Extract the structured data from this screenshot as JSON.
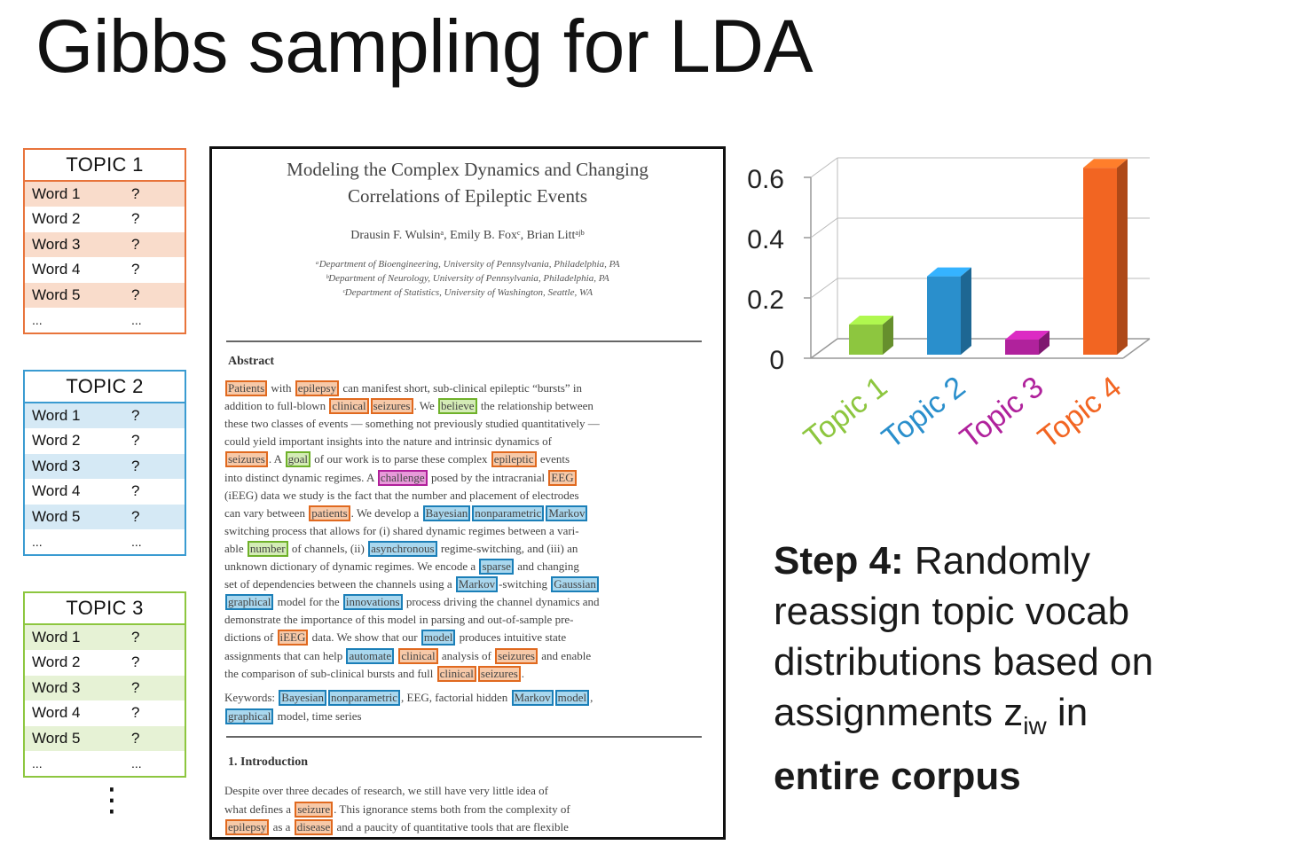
{
  "title": "Gibbs sampling for LDA",
  "topics": [
    {
      "name": "TOPIC 1",
      "color": "#e8743b",
      "fill": "#f9dccb",
      "words": [
        {
          "w": "Word 1",
          "p": "?"
        },
        {
          "w": "Word 2",
          "p": "?"
        },
        {
          "w": "Word 3",
          "p": "?"
        },
        {
          "w": "Word 4",
          "p": "?"
        },
        {
          "w": "Word 5",
          "p": "?"
        },
        {
          "w": "...",
          "p": "..."
        }
      ]
    },
    {
      "name": "TOPIC 2",
      "color": "#3a9bd1",
      "fill": "#d5e9f5",
      "words": [
        {
          "w": "Word 1",
          "p": "?"
        },
        {
          "w": "Word 2",
          "p": "?"
        },
        {
          "w": "Word 3",
          "p": "?"
        },
        {
          "w": "Word 4",
          "p": "?"
        },
        {
          "w": "Word 5",
          "p": "?"
        },
        {
          "w": "...",
          "p": "..."
        }
      ]
    },
    {
      "name": "TOPIC 3",
      "color": "#8dc63f",
      "fill": "#e6f2d5",
      "words": [
        {
          "w": "Word 1",
          "p": "?"
        },
        {
          "w": "Word 2",
          "p": "?"
        },
        {
          "w": "Word 3",
          "p": "?"
        },
        {
          "w": "Word 4",
          "p": "?"
        },
        {
          "w": "Word 5",
          "p": "?"
        },
        {
          "w": "...",
          "p": "..."
        }
      ]
    }
  ],
  "more_topics": "⋮",
  "paper": {
    "title_line1": "Modeling the Complex Dynamics and Changing",
    "title_line2": "Correlations of Epileptic Events",
    "authors": "Drausin F. Wulsinᵃ, Emily B. Foxᶜ, Brian Littᵃʲᵇ",
    "affil1": "ᵃDepartment of Bioengineering, University of Pennsylvania, Philadelphia, PA",
    "affil2": "ᵇDepartment of Neurology, University of Pennsylvania, Philadelphia, PA",
    "affil3": "ᶜDepartment of Statistics, University of Washington, Seattle, WA",
    "abstract_heading": "Abstract",
    "abstract_lines": [
      [
        {
          "t": "Patients",
          "c": "or"
        },
        {
          "t": " with "
        },
        {
          "t": "epilepsy",
          "c": "or"
        },
        {
          "t": " can manifest short, sub-clinical epileptic “bursts” in"
        }
      ],
      [
        {
          "t": "addition to full-blown "
        },
        {
          "t": "clinical",
          "c": "or"
        },
        {
          "t": "seizures",
          "c": "or"
        },
        {
          "t": ". We "
        },
        {
          "t": "believe",
          "c": "gr"
        },
        {
          "t": " the relationship between"
        }
      ],
      [
        {
          "t": "these two classes of events — something not previously studied quantitatively —"
        }
      ],
      [
        {
          "t": "could yield important insights into the nature and intrinsic dynamics of"
        }
      ],
      [
        {
          "t": "seizures",
          "c": "or"
        },
        {
          "t": ". A "
        },
        {
          "t": "goal",
          "c": "gr"
        },
        {
          "t": " of our work is to parse these complex "
        },
        {
          "t": "epileptic",
          "c": "or"
        },
        {
          "t": " events"
        }
      ],
      [
        {
          "t": "into distinct dynamic regimes. A "
        },
        {
          "t": "challenge",
          "c": "pk"
        },
        {
          "t": " posed by the intracranial "
        },
        {
          "t": "EEG",
          "c": "or"
        }
      ],
      [
        {
          "t": "(iEEG) data we study is the fact that the number and placement of electrodes"
        }
      ],
      [
        {
          "t": "can vary between "
        },
        {
          "t": "patients",
          "c": "or"
        },
        {
          "t": ". We develop a "
        },
        {
          "t": "Bayesian",
          "c": "bl"
        },
        {
          "t": "nonparametric",
          "c": "bl"
        },
        {
          "t": "Markov",
          "c": "bl"
        }
      ],
      [
        {
          "t": "switching process that allows for (i) shared dynamic regimes between a vari-"
        }
      ],
      [
        {
          "t": "able "
        },
        {
          "t": "number",
          "c": "gr"
        },
        {
          "t": " of channels, (ii) "
        },
        {
          "t": "asynchronous",
          "c": "bl"
        },
        {
          "t": " regime-switching, and (iii) an"
        }
      ],
      [
        {
          "t": "unknown dictionary of dynamic regimes. We encode a "
        },
        {
          "t": "sparse",
          "c": "bl"
        },
        {
          "t": " and changing"
        }
      ],
      [
        {
          "t": "set of dependencies between the channels using a "
        },
        {
          "t": "Markov",
          "c": "bl"
        },
        {
          "t": "-switching "
        },
        {
          "t": "Gaussian",
          "c": "bl"
        }
      ],
      [
        {
          "t": "graphical",
          "c": "bl"
        },
        {
          "t": " model for the "
        },
        {
          "t": "innovations",
          "c": "bl"
        },
        {
          "t": " process driving the channel dynamics and"
        }
      ],
      [
        {
          "t": "demonstrate the importance of this model in parsing and out-of-sample pre-"
        }
      ],
      [
        {
          "t": "dictions of "
        },
        {
          "t": "iEEG",
          "c": "or"
        },
        {
          "t": " data. We show that our "
        },
        {
          "t": "model",
          "c": "bl"
        },
        {
          "t": " produces intuitive state"
        }
      ],
      [
        {
          "t": "assignments that can help "
        },
        {
          "t": "automate",
          "c": "bl"
        },
        {
          "t": " "
        },
        {
          "t": "clinical",
          "c": "or"
        },
        {
          "t": " analysis of "
        },
        {
          "t": "seizures",
          "c": "or"
        },
        {
          "t": " and enable"
        }
      ],
      [
        {
          "t": "the comparison of sub-clinical bursts and full "
        },
        {
          "t": "clinical",
          "c": "or"
        },
        {
          "t": "seizures",
          "c": "or"
        },
        {
          "t": "."
        }
      ]
    ],
    "keyword_lines": [
      [
        {
          "t": "Keywords: "
        },
        {
          "t": "Bayesian",
          "c": "bl"
        },
        {
          "t": "nonparametric",
          "c": "bl"
        },
        {
          "t": ", EEG, factorial hidden "
        },
        {
          "t": "Markov",
          "c": "bl"
        },
        {
          "t": "model",
          "c": "bl"
        },
        {
          "t": ","
        }
      ],
      [
        {
          "t": "graphical",
          "c": "bl"
        },
        {
          "t": " model, time series"
        }
      ]
    ],
    "intro_heading": "1. Introduction",
    "intro_lines": [
      [
        {
          "t": "    Despite over three decades of research, we still have very little idea of"
        }
      ],
      [
        {
          "t": "what defines a "
        },
        {
          "t": "seizure",
          "c": "or"
        },
        {
          "t": ". This ignorance stems both from the complexity of"
        }
      ],
      [
        {
          "t": "epilepsy",
          "c": "or"
        },
        {
          "t": " as a "
        },
        {
          "t": "disease",
          "c": "or"
        },
        {
          "t": " and a paucity of quantitative tools that are flexible"
        }
      ]
    ]
  },
  "chart_data": {
    "type": "bar",
    "categories": [
      "Topic 1",
      "Topic 2",
      "Topic 3",
      "Topic 4"
    ],
    "values": [
      0.1,
      0.26,
      0.05,
      0.62
    ],
    "colors": [
      "#8dc63f",
      "#2a8fcc",
      "#b0229c",
      "#f26522"
    ],
    "yticks": [
      0,
      0.2,
      0.4,
      0.6
    ],
    "ylim": [
      0,
      0.6
    ],
    "style": "3d"
  },
  "step": {
    "label": "Step 4:",
    "line1_rest": " Randomly",
    "line2": "reassign topic vocab",
    "line3": "distributions based on",
    "line4_pre": "assignments z",
    "line4_sub": "iw",
    "line4_post": " in",
    "line5": "entire corpus"
  }
}
